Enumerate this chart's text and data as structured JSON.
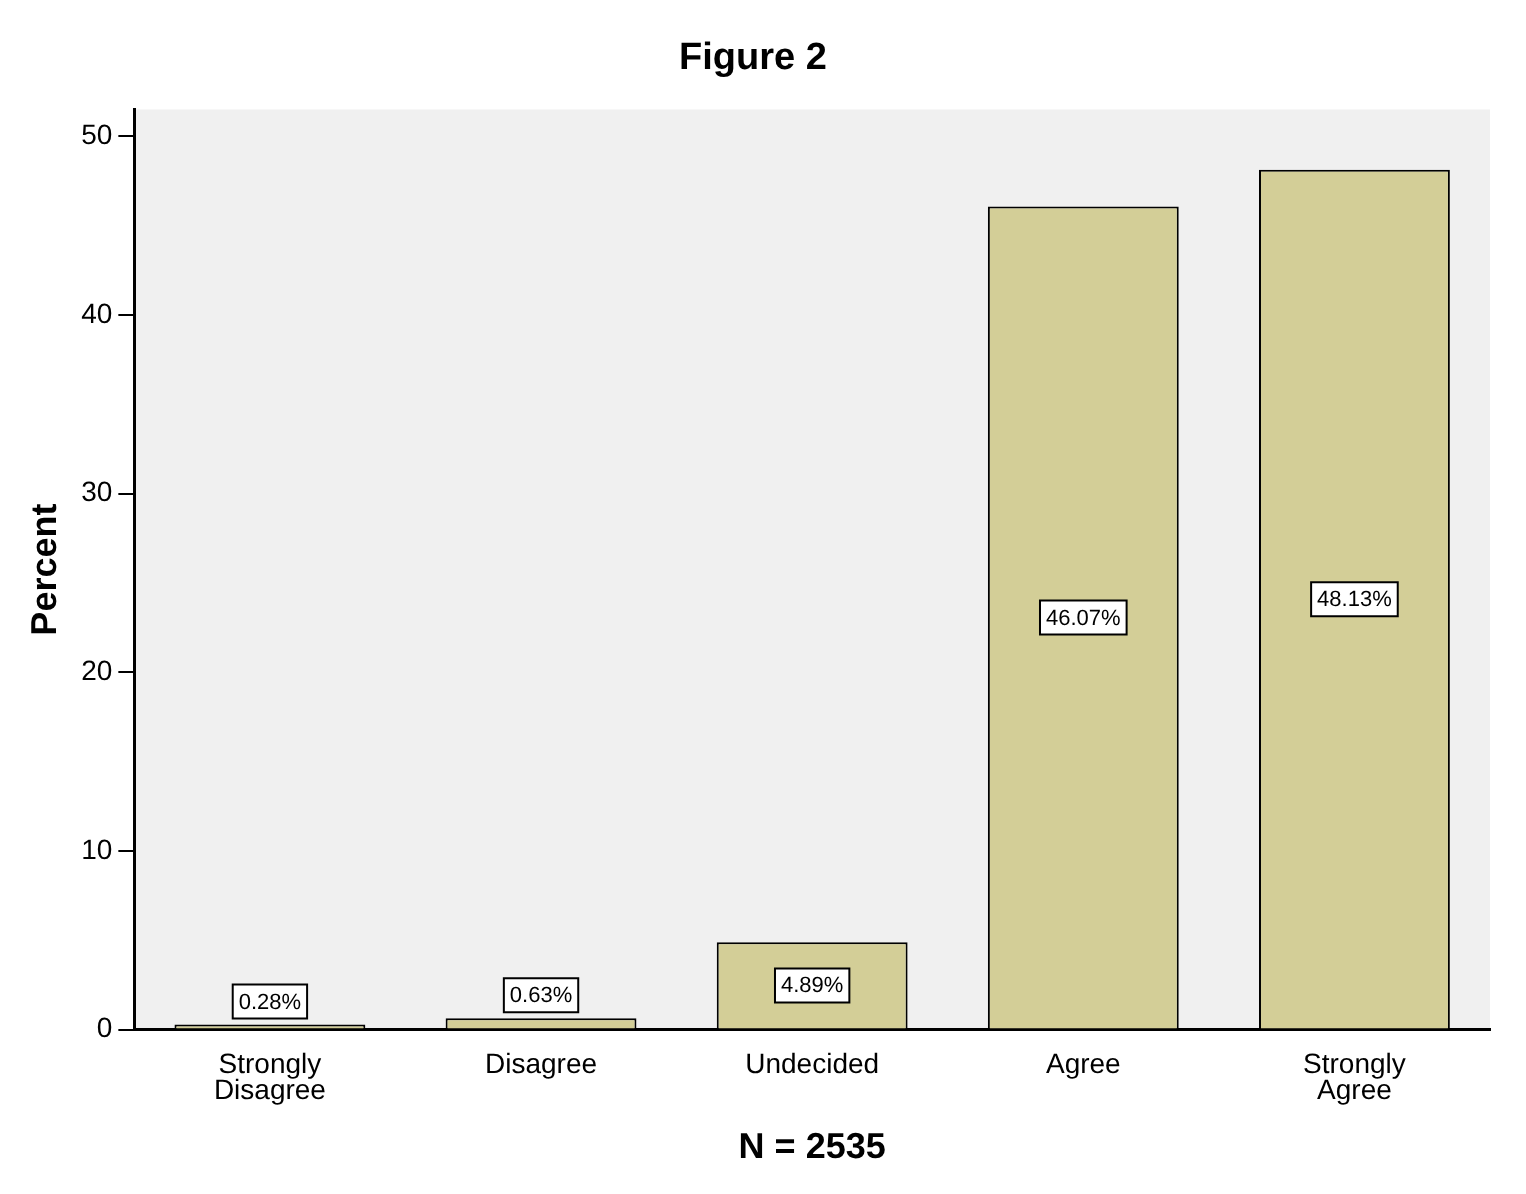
{
  "chart_data": {
    "type": "bar",
    "title": "Figure 2",
    "xlabel": "N = 2535",
    "ylabel": "Percent",
    "categories": [
      "Strongly Disagree",
      "Disagree",
      "Undecided",
      "Agree",
      "Strongly Agree"
    ],
    "values": [
      0.28,
      0.63,
      4.89,
      46.07,
      48.13
    ],
    "value_labels": [
      "0.28%",
      "0.63%",
      "4.89%",
      "46.07%",
      "48.13%"
    ],
    "color": "#d3ce97",
    "ylim": [
      0,
      51.5
    ],
    "yticks": [
      0,
      10,
      20,
      30,
      40,
      50
    ],
    "grid": false,
    "legend": false
  }
}
